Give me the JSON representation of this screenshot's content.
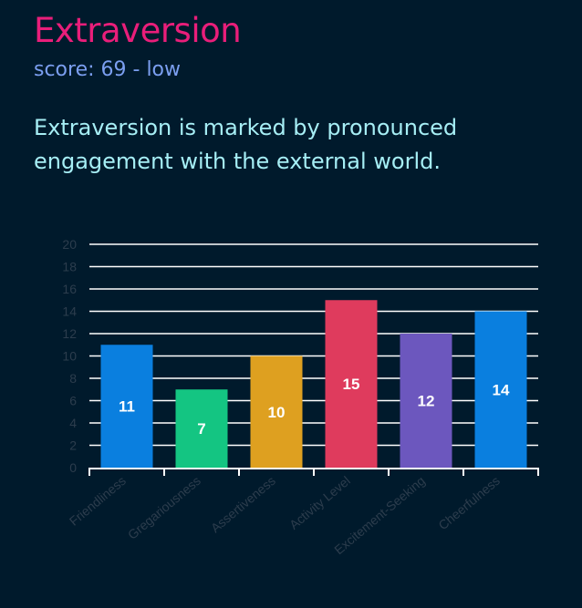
{
  "header": {
    "title": "Extraversion",
    "score_text": "score: 69 - low",
    "description": "Extraversion is marked by pronounced engagement with the external world."
  },
  "colors": {
    "background": "#001a2c",
    "title": "#e91e7a",
    "score": "#7b9ff0",
    "description": "#a6eef5",
    "grid": "#ffffff",
    "axis_text": "#2c3d4d"
  },
  "chart_data": {
    "type": "bar",
    "categories": [
      "Friendliness",
      "Gregariousness",
      "Assertiveness",
      "Activity Level",
      "Excitement-Seeking",
      "Cheerfulness"
    ],
    "values": [
      11,
      7,
      10,
      15,
      12,
      14
    ],
    "bar_colors": [
      "#0a7fdf",
      "#14c582",
      "#dea020",
      "#df3b5d",
      "#6c57be",
      "#0a7fdf"
    ],
    "ylim": [
      0,
      20
    ],
    "y_ticks": [
      0,
      2,
      4,
      6,
      8,
      10,
      12,
      14,
      16,
      18,
      20
    ],
    "grid": true,
    "data_labels": true
  }
}
